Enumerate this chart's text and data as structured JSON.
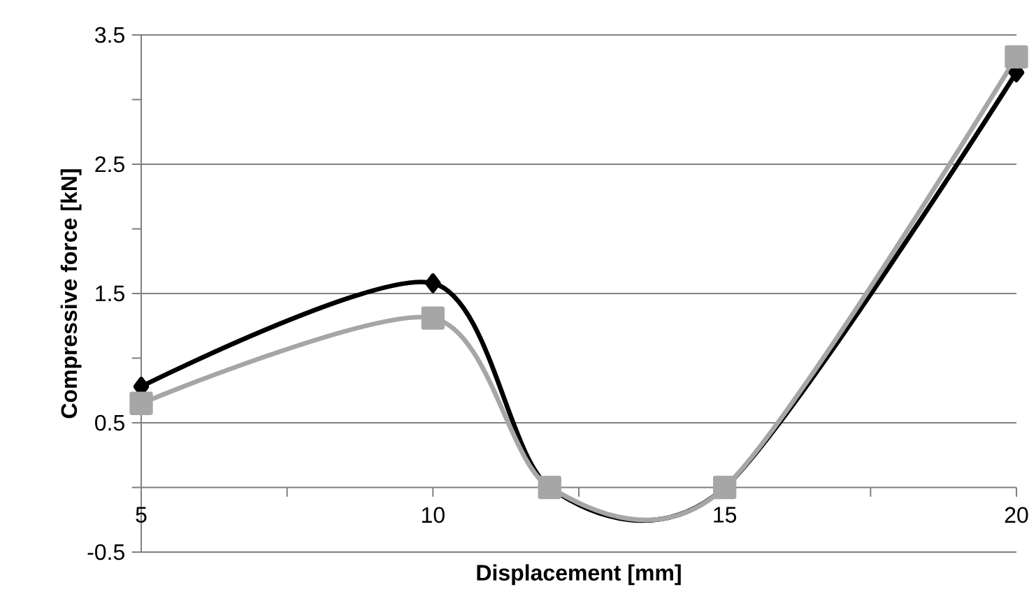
{
  "chart_data": {
    "type": "line",
    "xlabel": "Displacement [mm]",
    "ylabel": "Compressive force [kN]",
    "x": [
      5,
      10,
      12,
      15,
      20
    ],
    "series": [
      {
        "color": "#000000",
        "marker": "diamond",
        "values": [
          0.78,
          1.58,
          0,
          0,
          3.21
        ]
      },
      {
        "color": "#a6a6a6",
        "marker": "square",
        "values": [
          0.65,
          1.31,
          0,
          0,
          3.33
        ]
      }
    ],
    "xlim": [
      5,
      20
    ],
    "ylim": [
      -0.5,
      3.5
    ],
    "xticks": [
      5,
      {
        "value": 7.5,
        "label": null
      },
      10,
      {
        "value": 12.5,
        "label": null
      },
      15,
      {
        "value": 17.5,
        "label": null
      },
      20
    ],
    "yticks": [
      -0.5,
      {
        "value": 0,
        "label": null
      },
      0.5,
      {
        "value": 1,
        "label": null
      },
      1.5,
      {
        "value": 2,
        "label": null
      },
      2.5,
      {
        "value": 3,
        "label": null
      },
      3.5
    ],
    "grid": "y"
  }
}
